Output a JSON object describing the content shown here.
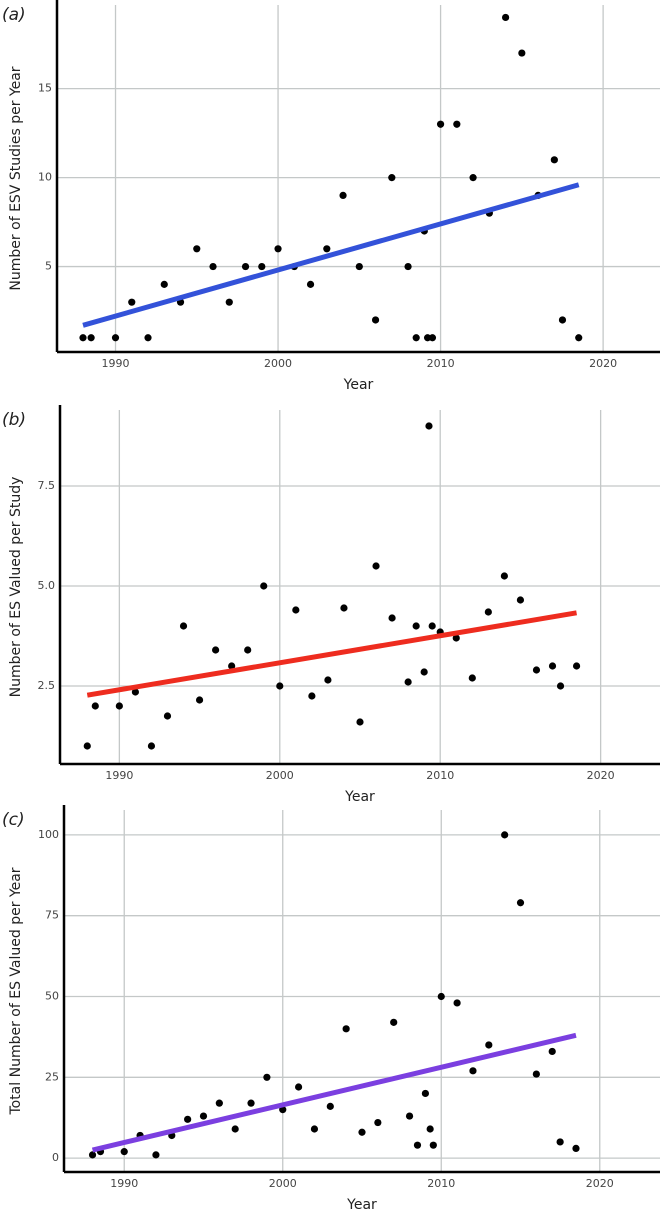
{
  "chart_data": [
    {
      "type": "scatter",
      "panel_label": "(a)",
      "xlabel": "Year",
      "ylabel": "Number of ESV Studies per Year",
      "x": [
        1988,
        1988.5,
        1990,
        1991,
        1992,
        1993,
        1994,
        1995,
        1996,
        1997,
        1998,
        1999,
        2000,
        2001,
        2002,
        2003,
        2004,
        2005,
        2006,
        2007,
        2008,
        2008.5,
        2009,
        2009.2,
        2009.5,
        2010,
        2011,
        2012,
        2013,
        2014,
        2015,
        2016,
        2017,
        2017.5,
        2018.5
      ],
      "values": [
        1,
        1,
        1,
        3,
        1,
        4,
        3,
        6,
        5,
        3,
        5,
        5,
        6,
        5,
        4,
        6,
        9,
        5,
        2,
        10,
        5,
        1,
        7,
        1,
        1,
        13,
        13,
        10,
        8,
        19,
        17,
        9,
        11,
        2,
        1
      ],
      "color": "#000000",
      "trend": {
        "x": [
          1988,
          2018.5
        ],
        "values": [
          1.7,
          9.6
        ],
        "color": "#3352d9"
      },
      "xlim": [
        1986.4,
        2023.5
      ],
      "ylim": [
        0.2,
        19.7
      ],
      "xticks": [
        1990,
        2000,
        2010,
        2020
      ],
      "yticks": [
        5,
        10,
        15
      ],
      "grid": true
    },
    {
      "type": "scatter",
      "panel_label": "(b)",
      "xlabel": "Year",
      "ylabel": "Number of ES Valued per Study",
      "x": [
        1988,
        1988.5,
        1990,
        1991,
        1992,
        1993,
        1994,
        1995,
        1996,
        1997,
        1998,
        1999,
        2000,
        2001,
        2002,
        2003,
        2004,
        2005,
        2006,
        2007,
        2008,
        2008.5,
        2009,
        2009.3,
        2009.5,
        2010,
        2011,
        2012,
        2013,
        2014,
        2015,
        2016,
        2017,
        2017.5,
        2018.5
      ],
      "values": [
        1.0,
        2.0,
        2.0,
        2.35,
        1.0,
        1.75,
        4.0,
        2.15,
        3.4,
        3.0,
        3.4,
        5.0,
        2.5,
        4.4,
        2.25,
        2.65,
        4.45,
        1.6,
        5.5,
        4.2,
        2.6,
        4.0,
        2.85,
        9.0,
        4.0,
        3.85,
        3.7,
        2.7,
        4.35,
        5.25,
        4.65,
        2.9,
        3.0,
        2.5,
        3.0
      ],
      "color": "#000000",
      "trend": {
        "x": [
          1988,
          2018.5
        ],
        "values": [
          2.27,
          4.33
        ],
        "color": "#ee2c1f"
      },
      "xlim": [
        1986.3,
        2023.7
      ],
      "ylim": [
        0.55,
        9.4
      ],
      "xticks": [
        1990,
        2000,
        2010,
        2020
      ],
      "yticks": [
        {
          "value": 2.5,
          "label": "2.5"
        },
        {
          "value": 5,
          "label": "5.0"
        },
        {
          "value": 7.5,
          "label": "7.5"
        }
      ],
      "grid": true
    },
    {
      "type": "scatter",
      "panel_label": "(c)",
      "xlabel": "Year",
      "ylabel": "Total Number of ES Valued per Year",
      "x": [
        1988,
        1988.5,
        1990,
        1991,
        1992,
        1993,
        1994,
        1995,
        1996,
        1997,
        1998,
        1999,
        2000,
        2001,
        2002,
        2003,
        2004,
        2005,
        2006,
        2007,
        2008,
        2008.5,
        2009,
        2009.3,
        2009.5,
        2010,
        2011,
        2012,
        2013,
        2014,
        2015,
        2016,
        2017,
        2017.5,
        2018.5
      ],
      "values": [
        1,
        2,
        2,
        7,
        1,
        7,
        12,
        13,
        17,
        9,
        17,
        25,
        15,
        22,
        9,
        16,
        40,
        8,
        11,
        42,
        13,
        4,
        20,
        9,
        4,
        50,
        48,
        27,
        35,
        100,
        79,
        26,
        33,
        5,
        3
      ],
      "color": "#000000",
      "trend": {
        "x": [
          1988,
          2018.5
        ],
        "values": [
          2.5,
          38
        ],
        "color": "#7b3fe0"
      },
      "xlim": [
        1986.2,
        2023.8
      ],
      "ylim": [
        -4.3,
        107.7
      ],
      "xticks": [
        1990,
        2000,
        2010,
        2020
      ],
      "yticks": [
        0,
        25,
        50,
        75,
        100
      ],
      "grid": true
    }
  ]
}
